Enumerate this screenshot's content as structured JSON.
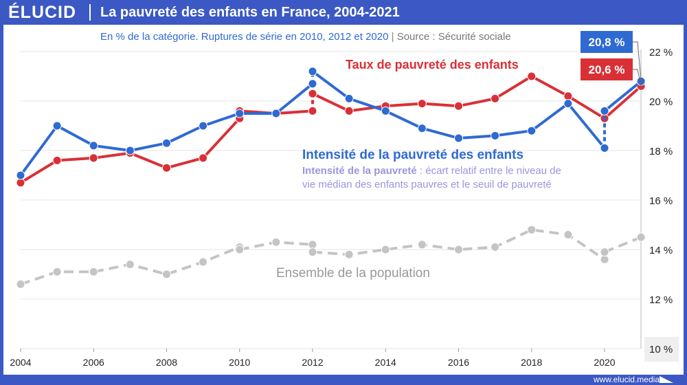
{
  "header": {
    "logo": "ÉLUCID",
    "title": "La pauvreté des enfants en France, 2004-2021"
  },
  "footer": {
    "url": "www.elucid.media"
  },
  "chart_data": {
    "type": "line",
    "title": "La pauvreté des enfants en France, 2004-2021",
    "subtitle": "En % de la catégorie. Ruptures de série en 2010, 2012 et 2020",
    "source": "Source : Sécurité sociale",
    "xlim": [
      2004,
      2021
    ],
    "ylim": [
      10,
      22
    ],
    "x_ticks": [
      "2004",
      "2006",
      "2008",
      "2010",
      "2012",
      "2014",
      "2016",
      "2018",
      "2020"
    ],
    "y_ticks": [
      "10 %",
      "12 %",
      "14 %",
      "16 %",
      "18 %",
      "20 %",
      "22 %"
    ],
    "series": [
      {
        "name": "Taux de pauvreté des enfants",
        "color": "#d93036",
        "points": [
          [
            2004,
            16.7
          ],
          [
            2005,
            17.6
          ],
          [
            2006,
            17.7
          ],
          [
            2007,
            17.9
          ],
          [
            2008,
            17.3
          ],
          [
            2009,
            17.7
          ],
          [
            2010,
            19.3
          ],
          [
            2010,
            19.6
          ],
          [
            2011,
            19.5
          ],
          [
            2012,
            19.6
          ],
          [
            2012,
            20.3
          ],
          [
            2013,
            19.6
          ],
          [
            2014,
            19.8
          ],
          [
            2015,
            19.9
          ],
          [
            2016,
            19.8
          ],
          [
            2017,
            20.1
          ],
          [
            2018,
            21.0
          ],
          [
            2019,
            20.2
          ],
          [
            2020,
            19.3
          ],
          [
            2021,
            20.6
          ]
        ],
        "breaks": [
          [
            2010,
            19.3,
            19.6
          ],
          [
            2012,
            19.6,
            20.3
          ]
        ],
        "end_label": "20,6 %"
      },
      {
        "name": "Intensité de la pauvreté des enfants",
        "color": "#2f6ad3",
        "points": [
          [
            2004,
            17.0
          ],
          [
            2005,
            19.0
          ],
          [
            2006,
            18.2
          ],
          [
            2007,
            18.0
          ],
          [
            2008,
            18.3
          ],
          [
            2009,
            19.0
          ],
          [
            2010,
            19.5
          ],
          [
            2011,
            19.5
          ],
          [
            2012,
            20.7
          ],
          [
            2012,
            21.2
          ],
          [
            2013,
            20.1
          ],
          [
            2014,
            19.6
          ],
          [
            2015,
            18.9
          ],
          [
            2016,
            18.5
          ],
          [
            2017,
            18.6
          ],
          [
            2018,
            18.8
          ],
          [
            2019,
            19.9
          ],
          [
            2020,
            18.1
          ],
          [
            2020,
            19.6
          ],
          [
            2021,
            20.8
          ]
        ],
        "breaks": [
          [
            2012,
            20.7,
            21.2
          ],
          [
            2020,
            18.1,
            19.6
          ]
        ],
        "end_label": "20,8 %"
      },
      {
        "name": "Ensemble de la population",
        "color": "#c4c4c4",
        "dashed": true,
        "points": [
          [
            2004,
            12.6
          ],
          [
            2005,
            13.1
          ],
          [
            2006,
            13.1
          ],
          [
            2007,
            13.4
          ],
          [
            2008,
            13.0
          ],
          [
            2009,
            13.5
          ],
          [
            2010,
            14.1
          ],
          [
            2010,
            14.0
          ],
          [
            2011,
            14.3
          ],
          [
            2012,
            14.2
          ],
          [
            2012,
            13.9
          ],
          [
            2013,
            13.8
          ],
          [
            2014,
            14.0
          ],
          [
            2015,
            14.2
          ],
          [
            2016,
            14.0
          ],
          [
            2017,
            14.1
          ],
          [
            2018,
            14.8
          ],
          [
            2019,
            14.6
          ],
          [
            2020,
            13.6
          ],
          [
            2020,
            13.9
          ],
          [
            2021,
            14.5
          ]
        ],
        "breaks": [
          [
            2010,
            14.1,
            14.0
          ],
          [
            2012,
            14.2,
            13.9
          ],
          [
            2020,
            13.6,
            13.9
          ]
        ]
      }
    ],
    "annotations": {
      "definition_bold": "Intensité de la pauvreté",
      "definition_rest": " : écart relatif entre le niveau de",
      "definition_line2": "vie médian des enfants pauvres et le seuil de pauvreté"
    }
  }
}
